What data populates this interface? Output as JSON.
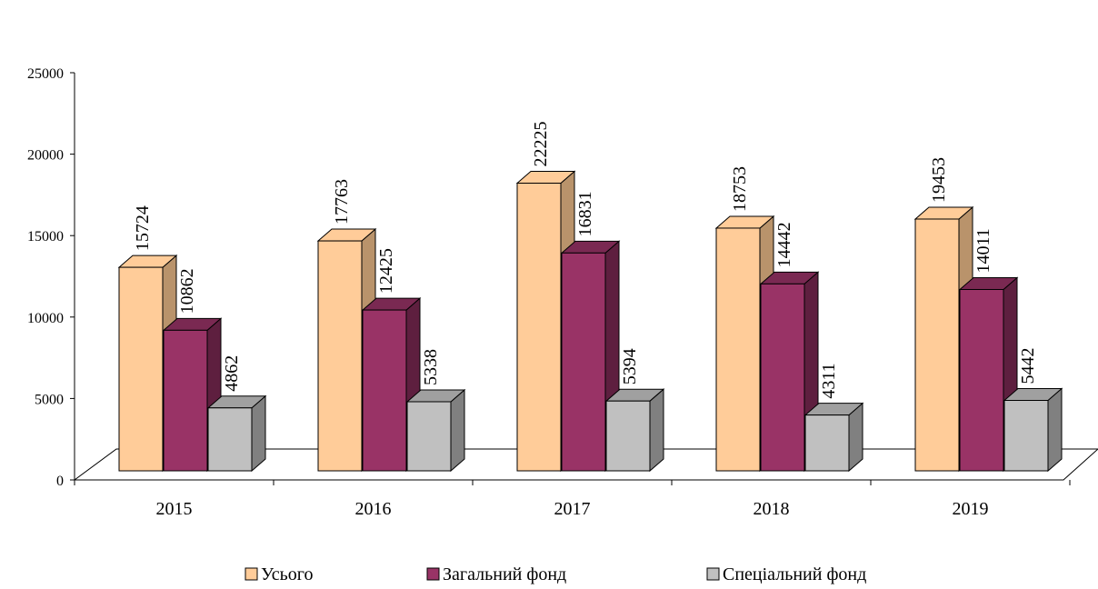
{
  "chart_data": {
    "type": "bar",
    "title": "",
    "xlabel": "",
    "ylabel": "",
    "ylim": [
      0,
      25000
    ],
    "y_ticks": [
      "0",
      "5000",
      "10000",
      "15000",
      "20000",
      "25000"
    ],
    "categories": [
      "2015",
      "2016",
      "2017",
      "2018",
      "2019"
    ],
    "series": [
      {
        "name": "Усього",
        "values": [
          15724,
          17763,
          22225,
          18753,
          19453
        ],
        "front": "#ffcc99",
        "side": "#b9936b",
        "top": "#ffcc99"
      },
      {
        "name": "Загальний фонд",
        "values": [
          10862,
          12425,
          16831,
          14442,
          14011
        ],
        "front": "#993366",
        "side": "#5e1f3f",
        "top": "#7a2952"
      },
      {
        "name": "Спеціальний фонд",
        "values": [
          4862,
          5338,
          5394,
          4311,
          5442
        ],
        "front": "#c0c0c0",
        "side": "#808080",
        "top": "#a0a0a0"
      }
    ],
    "legend_position": "bottom",
    "grid": false,
    "style": "3d-clustered-column"
  }
}
